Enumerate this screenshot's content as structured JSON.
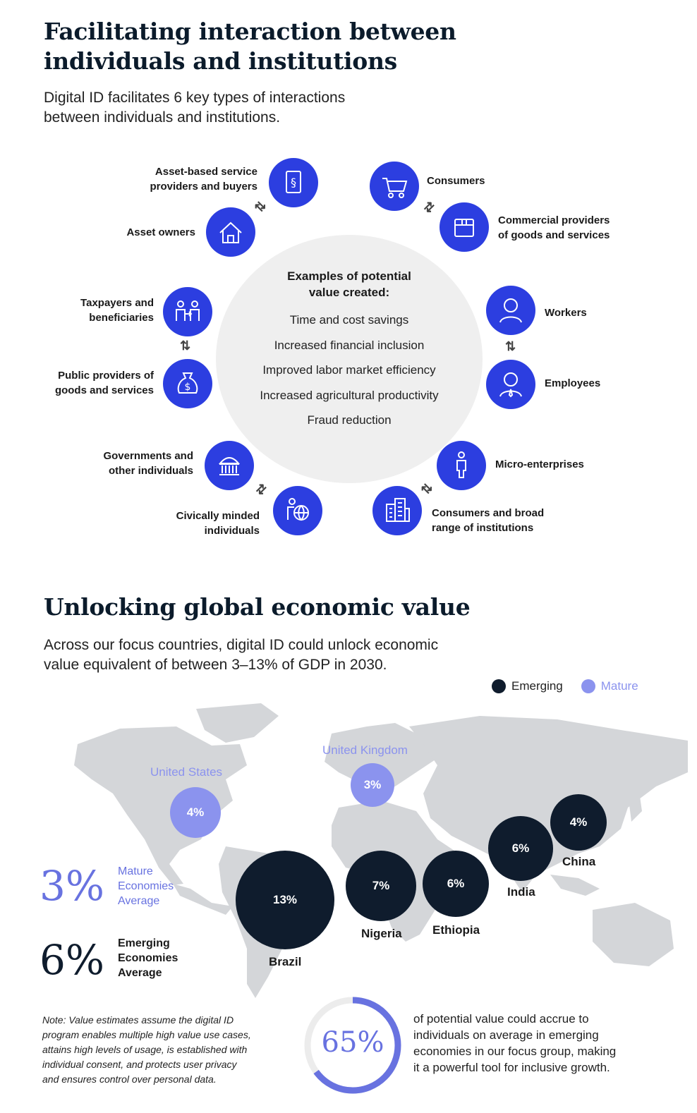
{
  "section1": {
    "title_line1": "Facilitating interaction between",
    "title_line2": "individuals and institutions",
    "subtitle_line1": "Digital ID facilitates 6 key types of interactions",
    "subtitle_line2": "between individuals and institutions."
  },
  "center": {
    "title_line1": "Examples of potential",
    "title_line2": "value created:",
    "items": [
      "Time and cost savings",
      "Increased financial inclusion",
      "Improved labor market efficiency",
      "Increased agricultural productivity",
      "Fraud reduction"
    ]
  },
  "nodes": {
    "asset_service": {
      "l1": "Asset-based service",
      "l2": "providers and buyers",
      "icon": "document-section-icon"
    },
    "asset_owners": {
      "l1": "Asset owners",
      "icon": "house-icon"
    },
    "consumers": {
      "l1": "Consumers",
      "icon": "shopping-cart-icon"
    },
    "commercial": {
      "l1": "Commercial providers",
      "l2": "of goods and services",
      "icon": "package-icon"
    },
    "taxpayers": {
      "l1": "Taxpayers and",
      "l2": "beneficiaries",
      "icon": "people-exchange-icon"
    },
    "public": {
      "l1": "Public providers of",
      "l2": "goods and services",
      "icon": "money-bag-icon"
    },
    "workers": {
      "l1": "Workers",
      "icon": "person-icon"
    },
    "employees": {
      "l1": "Employees",
      "icon": "employee-icon"
    },
    "governments": {
      "l1": "Governments and",
      "l2": "other individuals",
      "icon": "government-building-icon"
    },
    "civic": {
      "l1": "Civically minded",
      "l2": "individuals",
      "icon": "person-globe-icon"
    },
    "micro": {
      "l1": "Micro-enterprises",
      "icon": "standing-person-icon"
    },
    "broad": {
      "l1": "Consumers and broad",
      "l2": "range of institutions",
      "icon": "city-buildings-icon"
    }
  },
  "section2": {
    "title": "Unlocking global economic value",
    "subtitle_line1": "Across our focus countries, digital ID could unlock economic",
    "subtitle_line2": "value equivalent of between 3–13% of GDP in 2030."
  },
  "legend": {
    "emerging": "Emerging",
    "mature": "Mature",
    "emerging_color": "#0f1c2d",
    "mature_color": "#8b93ee"
  },
  "countries": [
    {
      "name": "United States",
      "value": "4%",
      "type": "mature"
    },
    {
      "name": "United Kingdom",
      "value": "3%",
      "type": "mature"
    },
    {
      "name": "Brazil",
      "value": "13%",
      "type": "emerging"
    },
    {
      "name": "Nigeria",
      "value": "7%",
      "type": "emerging"
    },
    {
      "name": "Ethiopia",
      "value": "6%",
      "type": "emerging"
    },
    {
      "name": "India",
      "value": "6%",
      "type": "emerging"
    },
    {
      "name": "China",
      "value": "4%",
      "type": "emerging"
    }
  ],
  "averages": {
    "mature_value": "3%",
    "mature_l1": "Mature",
    "mature_l2": "Economies",
    "mature_l3": "Average",
    "emerging_value": "6%",
    "emerging_l1": "Emerging",
    "emerging_l2": "Economies",
    "emerging_l3": "Average"
  },
  "note": {
    "l1": "Note: Value estimates assume the digital ID",
    "l2": "program enables multiple high value use cases,",
    "l3": "attains high levels of usage, is established with",
    "l4": "individual consent, and protects user privacy",
    "l5": "and ensures control over personal data."
  },
  "stat": {
    "value": "65%",
    "fraction": 0.65,
    "l1": "of potential value could accrue to",
    "l2": "individuals on average in emerging",
    "l3": "economies in our focus group, making",
    "l4": "it a powerful tool for inclusive growth."
  }
}
